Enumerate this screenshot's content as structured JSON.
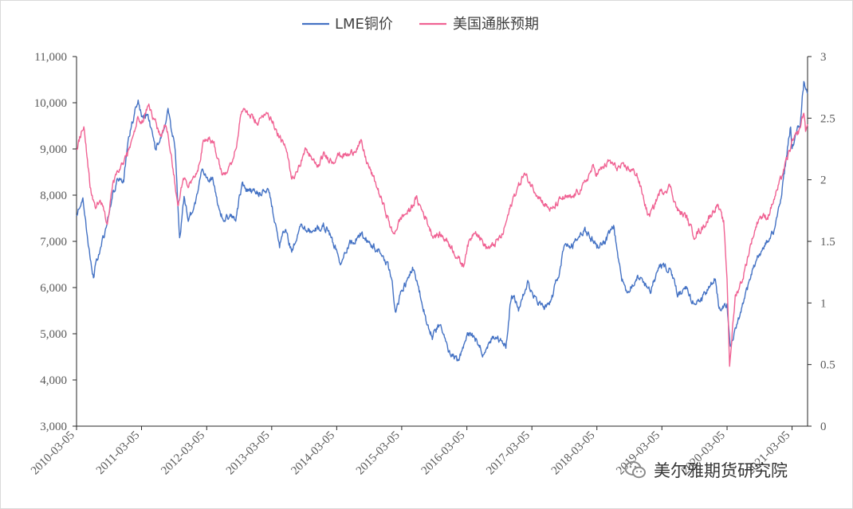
{
  "chart_data": {
    "type": "line",
    "dual_axis": true,
    "legend_position": "top-center",
    "grid": false,
    "x_tick_labels": [
      "2010-03-05",
      "2011-03-05",
      "2012-03-05",
      "2013-03-05",
      "2014-03-05",
      "2015-03-05",
      "2016-03-05",
      "2017-03-05",
      "2018-03-05",
      "2019-03-05",
      "2020-03-05",
      "2021-03-05"
    ],
    "x_range": [
      "2010-03-05",
      "2021-05-31"
    ],
    "y_left": {
      "range": [
        3000,
        11000
      ],
      "tick_labels": [
        "3,000",
        "4,000",
        "5,000",
        "6,000",
        "7,000",
        "8,000",
        "9,000",
        "10,000",
        "11,000"
      ]
    },
    "y_right": {
      "range": [
        0,
        3
      ],
      "tick_labels": [
        "0",
        "0.5",
        "1",
        "1.5",
        "2",
        "2.5",
        "3"
      ]
    },
    "series": [
      {
        "name": "LME铜价",
        "axis": "left",
        "color": "#4472C4",
        "points": [
          [
            "2010-03-05",
            7550
          ],
          [
            "2010-04-10",
            7950
          ],
          [
            "2010-05-10",
            6900
          ],
          [
            "2010-06-08",
            6250
          ],
          [
            "2010-07-01",
            6650
          ],
          [
            "2010-08-15",
            7250
          ],
          [
            "2010-09-15",
            7850
          ],
          [
            "2010-10-20",
            8350
          ],
          [
            "2010-11-25",
            8300
          ],
          [
            "2010-12-20",
            9200
          ],
          [
            "2011-02-14",
            10100
          ],
          [
            "2011-03-05",
            9700
          ],
          [
            "2011-04-10",
            9750
          ],
          [
            "2011-05-20",
            9000
          ],
          [
            "2011-06-25",
            9300
          ],
          [
            "2011-08-01",
            9800
          ],
          [
            "2011-09-10",
            9000
          ],
          [
            "2011-10-05",
            7050
          ],
          [
            "2011-10-30",
            7950
          ],
          [
            "2011-11-25",
            7450
          ],
          [
            "2012-01-10",
            7950
          ],
          [
            "2012-02-05",
            8550
          ],
          [
            "2012-03-05",
            8400
          ],
          [
            "2012-04-10",
            8350
          ],
          [
            "2012-05-15",
            7650
          ],
          [
            "2012-06-10",
            7450
          ],
          [
            "2012-07-15",
            7600
          ],
          [
            "2012-08-15",
            7500
          ],
          [
            "2012-09-20",
            8250
          ],
          [
            "2012-10-15",
            8100
          ],
          [
            "2012-12-05",
            8050
          ],
          [
            "2013-01-10",
            8050
          ],
          [
            "2013-02-15",
            8150
          ],
          [
            "2013-03-05",
            7800
          ],
          [
            "2013-04-18",
            6900
          ],
          [
            "2013-05-20",
            7300
          ],
          [
            "2013-06-25",
            6750
          ],
          [
            "2013-08-15",
            7300
          ],
          [
            "2013-10-15",
            7200
          ],
          [
            "2013-12-20",
            7350
          ],
          [
            "2014-01-20",
            7200
          ],
          [
            "2014-03-05",
            6800
          ],
          [
            "2014-03-20",
            6500
          ],
          [
            "2014-05-15",
            6950
          ],
          [
            "2014-07-20",
            7150
          ],
          [
            "2014-09-20",
            6900
          ],
          [
            "2014-11-20",
            6700
          ],
          [
            "2015-01-05",
            6300
          ],
          [
            "2015-01-28",
            5500
          ],
          [
            "2015-03-05",
            5900
          ],
          [
            "2015-05-05",
            6400
          ],
          [
            "2015-06-20",
            5800
          ],
          [
            "2015-07-25",
            5250
          ],
          [
            "2015-08-24",
            4950
          ],
          [
            "2015-10-10",
            5250
          ],
          [
            "2015-11-22",
            4600
          ],
          [
            "2016-01-15",
            4400
          ],
          [
            "2016-03-05",
            4950
          ],
          [
            "2016-04-15",
            4950
          ],
          [
            "2016-06-01",
            4600
          ],
          [
            "2016-08-01",
            4950
          ],
          [
            "2016-10-10",
            4750
          ],
          [
            "2016-11-11",
            5900
          ],
          [
            "2016-12-20",
            5550
          ],
          [
            "2017-02-13",
            6150
          ],
          [
            "2017-03-05",
            5850
          ],
          [
            "2017-05-10",
            5550
          ],
          [
            "2017-06-20",
            5700
          ],
          [
            "2017-08-10",
            6400
          ],
          [
            "2017-09-05",
            6900
          ],
          [
            "2017-10-20",
            6900
          ],
          [
            "2017-12-28",
            7250
          ],
          [
            "2018-02-05",
            7050
          ],
          [
            "2018-03-05",
            6900
          ],
          [
            "2018-04-20",
            7000
          ],
          [
            "2018-06-07",
            7300
          ],
          [
            "2018-07-20",
            6200
          ],
          [
            "2018-08-20",
            5900
          ],
          [
            "2018-10-20",
            6250
          ],
          [
            "2018-12-31",
            5950
          ],
          [
            "2019-02-25",
            6500
          ],
          [
            "2019-03-05",
            6450
          ],
          [
            "2019-04-20",
            6400
          ],
          [
            "2019-06-01",
            5850
          ],
          [
            "2019-07-20",
            5950
          ],
          [
            "2019-09-03",
            5650
          ],
          [
            "2019-10-15",
            5750
          ],
          [
            "2019-12-30",
            6200
          ],
          [
            "2020-01-20",
            5550
          ],
          [
            "2020-03-05",
            5650
          ],
          [
            "2020-03-23",
            4650
          ],
          [
            "2020-05-01",
            5200
          ],
          [
            "2020-06-15",
            5800
          ],
          [
            "2020-07-30",
            6450
          ],
          [
            "2020-09-15",
            6800
          ],
          [
            "2020-11-20",
            7200
          ],
          [
            "2020-12-31",
            7900
          ],
          [
            "2021-02-25",
            9500
          ],
          [
            "2021-03-05",
            9000
          ],
          [
            "2021-04-20",
            9600
          ],
          [
            "2021-05-10",
            10450
          ],
          [
            "2021-05-31",
            10200
          ]
        ]
      },
      {
        "name": "美国通胀预期",
        "axis": "right",
        "color": "#F06293",
        "points": [
          [
            "2010-03-05",
            2.25
          ],
          [
            "2010-04-15",
            2.45
          ],
          [
            "2010-05-20",
            1.95
          ],
          [
            "2010-06-20",
            1.75
          ],
          [
            "2010-07-15",
            1.85
          ],
          [
            "2010-08-25",
            1.65
          ],
          [
            "2010-09-25",
            1.95
          ],
          [
            "2010-10-20",
            2.05
          ],
          [
            "2010-12-15",
            2.2
          ],
          [
            "2011-02-15",
            2.5
          ],
          [
            "2011-03-05",
            2.45
          ],
          [
            "2011-04-15",
            2.6
          ],
          [
            "2011-05-25",
            2.45
          ],
          [
            "2011-06-20",
            2.35
          ],
          [
            "2011-07-20",
            2.45
          ],
          [
            "2011-08-20",
            2.2
          ],
          [
            "2011-09-25",
            1.8
          ],
          [
            "2011-10-25",
            2.0
          ],
          [
            "2011-11-25",
            1.95
          ],
          [
            "2012-01-10",
            2.05
          ],
          [
            "2012-02-15",
            2.3
          ],
          [
            "2012-03-05",
            2.35
          ],
          [
            "2012-04-15",
            2.3
          ],
          [
            "2012-06-01",
            2.05
          ],
          [
            "2012-07-15",
            2.1
          ],
          [
            "2012-08-20",
            2.3
          ],
          [
            "2012-09-15",
            2.55
          ],
          [
            "2012-10-15",
            2.55
          ],
          [
            "2012-12-20",
            2.45
          ],
          [
            "2013-01-25",
            2.55
          ],
          [
            "2013-03-05",
            2.5
          ],
          [
            "2013-04-15",
            2.35
          ],
          [
            "2013-05-25",
            2.25
          ],
          [
            "2013-06-25",
            2.0
          ],
          [
            "2013-08-15",
            2.15
          ],
          [
            "2013-09-15",
            2.25
          ],
          [
            "2013-11-15",
            2.1
          ],
          [
            "2013-12-20",
            2.2
          ],
          [
            "2014-02-15",
            2.15
          ],
          [
            "2014-03-05",
            2.2
          ],
          [
            "2014-05-15",
            2.2
          ],
          [
            "2014-07-20",
            2.3
          ],
          [
            "2014-08-20",
            2.15
          ],
          [
            "2014-10-15",
            1.95
          ],
          [
            "2014-12-15",
            1.7
          ],
          [
            "2015-01-15",
            1.55
          ],
          [
            "2015-03-05",
            1.7
          ],
          [
            "2015-04-20",
            1.75
          ],
          [
            "2015-05-25",
            1.85
          ],
          [
            "2015-07-15",
            1.7
          ],
          [
            "2015-08-25",
            1.55
          ],
          [
            "2015-10-10",
            1.55
          ],
          [
            "2015-11-20",
            1.5
          ],
          [
            "2016-01-20",
            1.35
          ],
          [
            "2016-02-15",
            1.3
          ],
          [
            "2016-03-05",
            1.45
          ],
          [
            "2016-04-20",
            1.6
          ],
          [
            "2016-06-20",
            1.45
          ],
          [
            "2016-07-20",
            1.45
          ],
          [
            "2016-09-20",
            1.55
          ],
          [
            "2016-11-20",
            1.85
          ],
          [
            "2017-01-20",
            2.05
          ],
          [
            "2017-03-05",
            1.95
          ],
          [
            "2017-05-15",
            1.8
          ],
          [
            "2017-06-25",
            1.75
          ],
          [
            "2017-08-20",
            1.85
          ],
          [
            "2017-10-15",
            1.85
          ],
          [
            "2017-12-20",
            1.95
          ],
          [
            "2018-02-10",
            2.1
          ],
          [
            "2018-03-05",
            2.05
          ],
          [
            "2018-05-15",
            2.15
          ],
          [
            "2018-06-20",
            2.1
          ],
          [
            "2018-08-20",
            2.1
          ],
          [
            "2018-10-15",
            2.05
          ],
          [
            "2018-12-20",
            1.7
          ],
          [
            "2019-01-10",
            1.75
          ],
          [
            "2019-02-20",
            1.9
          ],
          [
            "2019-03-05",
            1.9
          ],
          [
            "2019-04-20",
            1.95
          ],
          [
            "2019-06-01",
            1.75
          ],
          [
            "2019-07-20",
            1.7
          ],
          [
            "2019-09-01",
            1.55
          ],
          [
            "2019-10-15",
            1.6
          ],
          [
            "2019-12-20",
            1.75
          ],
          [
            "2020-01-10",
            1.8
          ],
          [
            "2020-02-15",
            1.65
          ],
          [
            "2020-03-05",
            1.2
          ],
          [
            "2020-03-19",
            0.5
          ],
          [
            "2020-04-20",
            1.05
          ],
          [
            "2020-06-01",
            1.2
          ],
          [
            "2020-07-20",
            1.5
          ],
          [
            "2020-09-01",
            1.7
          ],
          [
            "2020-10-20",
            1.7
          ],
          [
            "2020-12-20",
            1.95
          ],
          [
            "2021-02-01",
            2.15
          ],
          [
            "2021-03-05",
            2.3
          ],
          [
            "2021-04-15",
            2.4
          ],
          [
            "2021-05-10",
            2.55
          ],
          [
            "2021-05-20",
            2.4
          ],
          [
            "2021-05-31",
            2.45
          ]
        ]
      }
    ]
  },
  "watermark": {
    "text": "美尔雅期货研究院",
    "icon": "wechat-icon"
  }
}
